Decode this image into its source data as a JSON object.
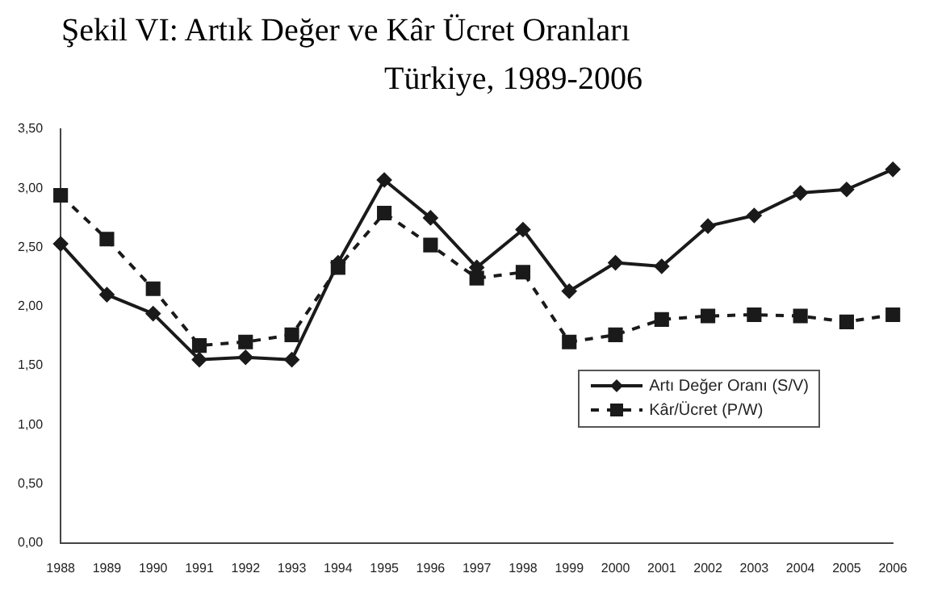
{
  "chart_data": {
    "type": "line",
    "title": "Şekil VI:   Artık Değer ve Kâr Ücret Oranları",
    "subtitle": "Türkiye, 1989-2006",
    "categories": [
      "1988",
      "1989",
      "1990",
      "1991",
      "1992",
      "1993",
      "1994",
      "1995",
      "1996",
      "1997",
      "1998",
      "1999",
      "2000",
      "2001",
      "2002",
      "2003",
      "2004",
      "2005",
      "2006"
    ],
    "series": [
      {
        "name": "Artı Değer Oranı (S/V)",
        "color": "#1a1a1a",
        "marker": "diamond",
        "line_style": "solid",
        "values": [
          2.53,
          2.1,
          1.94,
          1.55,
          1.57,
          1.55,
          2.37,
          3.07,
          2.75,
          2.33,
          2.65,
          2.13,
          2.37,
          2.34,
          2.68,
          2.77,
          2.96,
          2.99,
          3.16
        ]
      },
      {
        "name": "Kâr/Ücret (P/W)",
        "color": "#1a1a1a",
        "marker": "square",
        "line_style": "dashed",
        "values": [
          2.94,
          2.57,
          2.15,
          1.67,
          1.7,
          1.76,
          2.33,
          2.79,
          2.52,
          2.24,
          2.29,
          1.7,
          1.76,
          1.89,
          1.92,
          1.93,
          1.92,
          1.87,
          1.93
        ]
      }
    ],
    "ylim": [
      0,
      3.5
    ],
    "yticks": [
      {
        "value": 0,
        "label": "0,00"
      },
      {
        "value": 0.5,
        "label": "0,50"
      },
      {
        "value": 1,
        "label": "1,00"
      },
      {
        "value": 1.5,
        "label": "1,50"
      },
      {
        "value": 2,
        "label": "2,00"
      },
      {
        "value": 2.5,
        "label": "2,50"
      },
      {
        "value": 3,
        "label": "3,00"
      },
      {
        "value": 3.5,
        "label": "3,50"
      }
    ],
    "grid": false,
    "legend": "right"
  }
}
